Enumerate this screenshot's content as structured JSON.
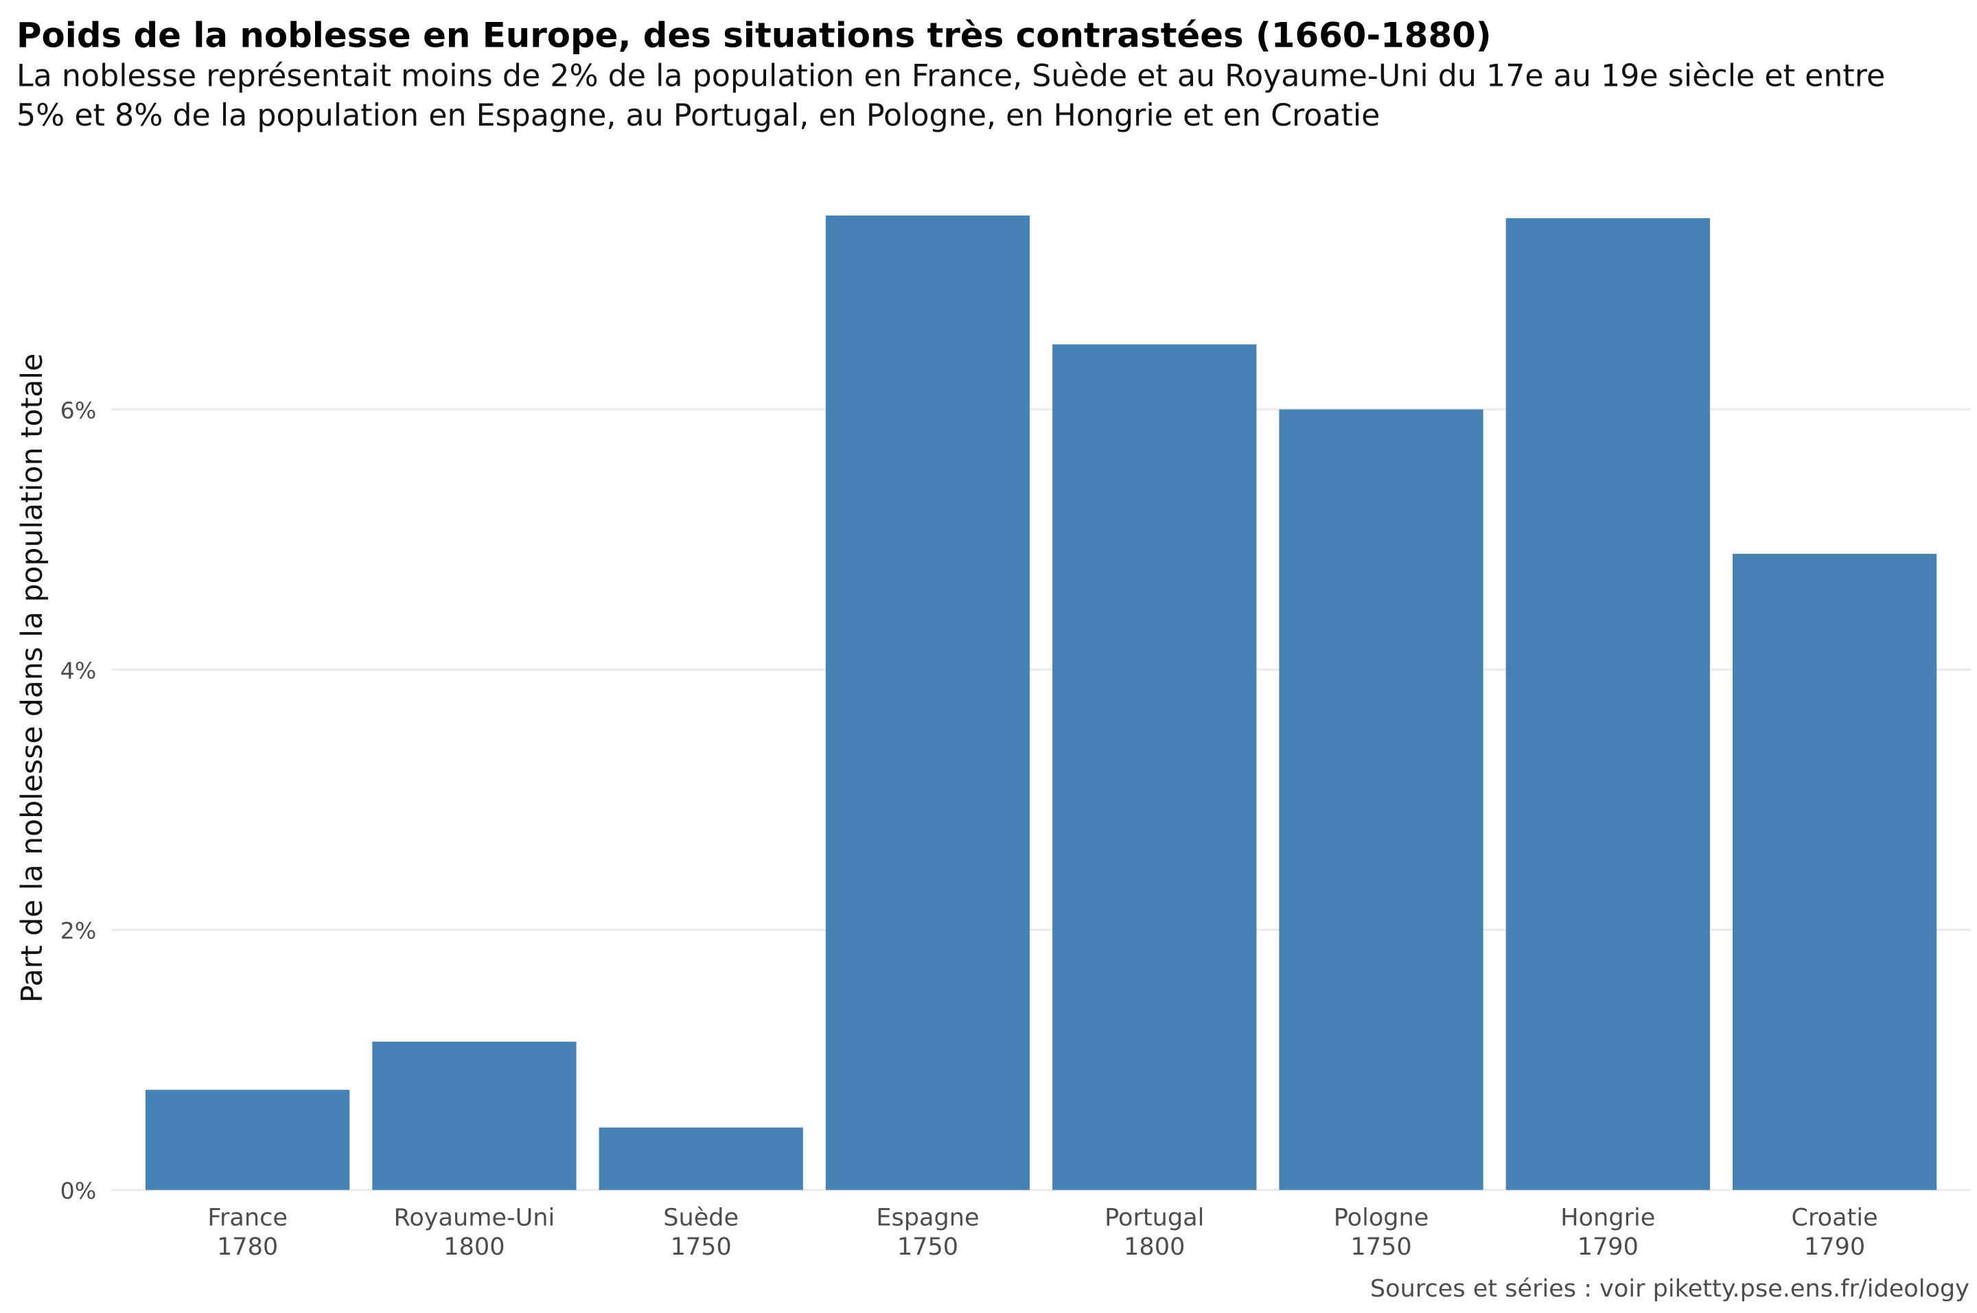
{
  "chart_data": {
    "type": "bar",
    "title": "Poids de la noblesse en Europe, des situations très contrastées (1660-1880)",
    "subtitle": [
      "La noblesse représentait moins de 2% de la population en France, Suède et au Royaume-Uni du 17e au 19e siècle et entre",
      "5% et 8% de la population en Espagne, au Portugal, en Pologne, en Hongrie et en Croatie"
    ],
    "xlabel": "",
    "ylabel": "Part de la noblesse dans la population totale",
    "caption": "Sources et séries : voir piketty.pse.ens.fr/ideology",
    "categories": [
      {
        "country": "France",
        "year": "1780"
      },
      {
        "country": "Royaume-Uni",
        "year": "1800"
      },
      {
        "country": "Suède",
        "year": "1750"
      },
      {
        "country": "Espagne",
        "year": "1750"
      },
      {
        "country": "Portugal",
        "year": "1800"
      },
      {
        "country": "Pologne",
        "year": "1750"
      },
      {
        "country": "Hongrie",
        "year": "1790"
      },
      {
        "country": "Croatie",
        "year": "1790"
      }
    ],
    "values": [
      0.77,
      1.14,
      0.48,
      7.49,
      6.5,
      6.0,
      7.47,
      4.89
    ],
    "unit": "%",
    "yticks": [
      0,
      2,
      4,
      6
    ],
    "ytick_labels": [
      "0%",
      "2%",
      "4%",
      "6%"
    ],
    "ylim": [
      0,
      7.9
    ],
    "grid": true,
    "legend": "none",
    "bar_color": "#4682B4"
  }
}
